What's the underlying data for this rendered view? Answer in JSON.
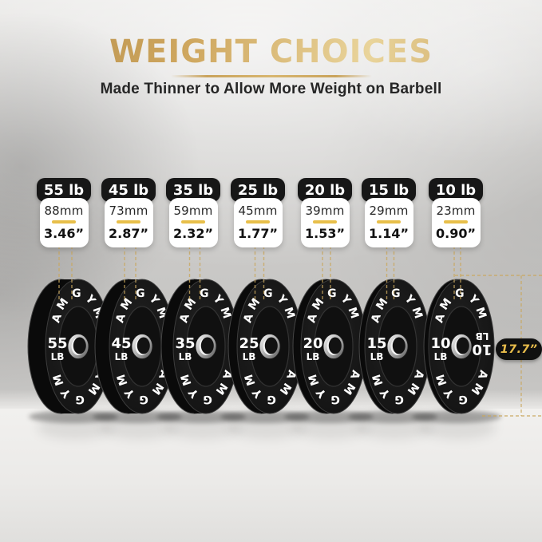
{
  "header": {
    "title": "WEIGHT CHOICES",
    "subtitle": "Made Thinner to Allow More Weight on Barbell"
  },
  "brand": "AMGYM",
  "unit_label": "LB",
  "diameter": {
    "label": "17.7”"
  },
  "weights": [
    {
      "pill": "55 lb",
      "mm": "88mm",
      "inch": "3.46”",
      "plate": "55"
    },
    {
      "pill": "45 lb",
      "mm": "73mm",
      "inch": "2.87”",
      "plate": "45"
    },
    {
      "pill": "35 lb",
      "mm": "59mm",
      "inch": "2.32”",
      "plate": "35"
    },
    {
      "pill": "25 lb",
      "mm": "45mm",
      "inch": "1.77”",
      "plate": "25"
    },
    {
      "pill": "20 lb",
      "mm": "39mm",
      "inch": "1.53”",
      "plate": "20"
    },
    {
      "pill": "15 lb",
      "mm": "29mm",
      "inch": "1.14”",
      "plate": "15"
    },
    {
      "pill": "10 lb",
      "mm": "23mm",
      "inch": "0.90”",
      "plate": "10"
    }
  ],
  "colors": {
    "gold_title": "#C9A35B",
    "accent_yellow": "#E8BF4A",
    "dash_gold": "#C9A85E",
    "pill_black": "#171717",
    "plate_black": "#141414",
    "badge_text_gold": "#E9BD4B"
  }
}
